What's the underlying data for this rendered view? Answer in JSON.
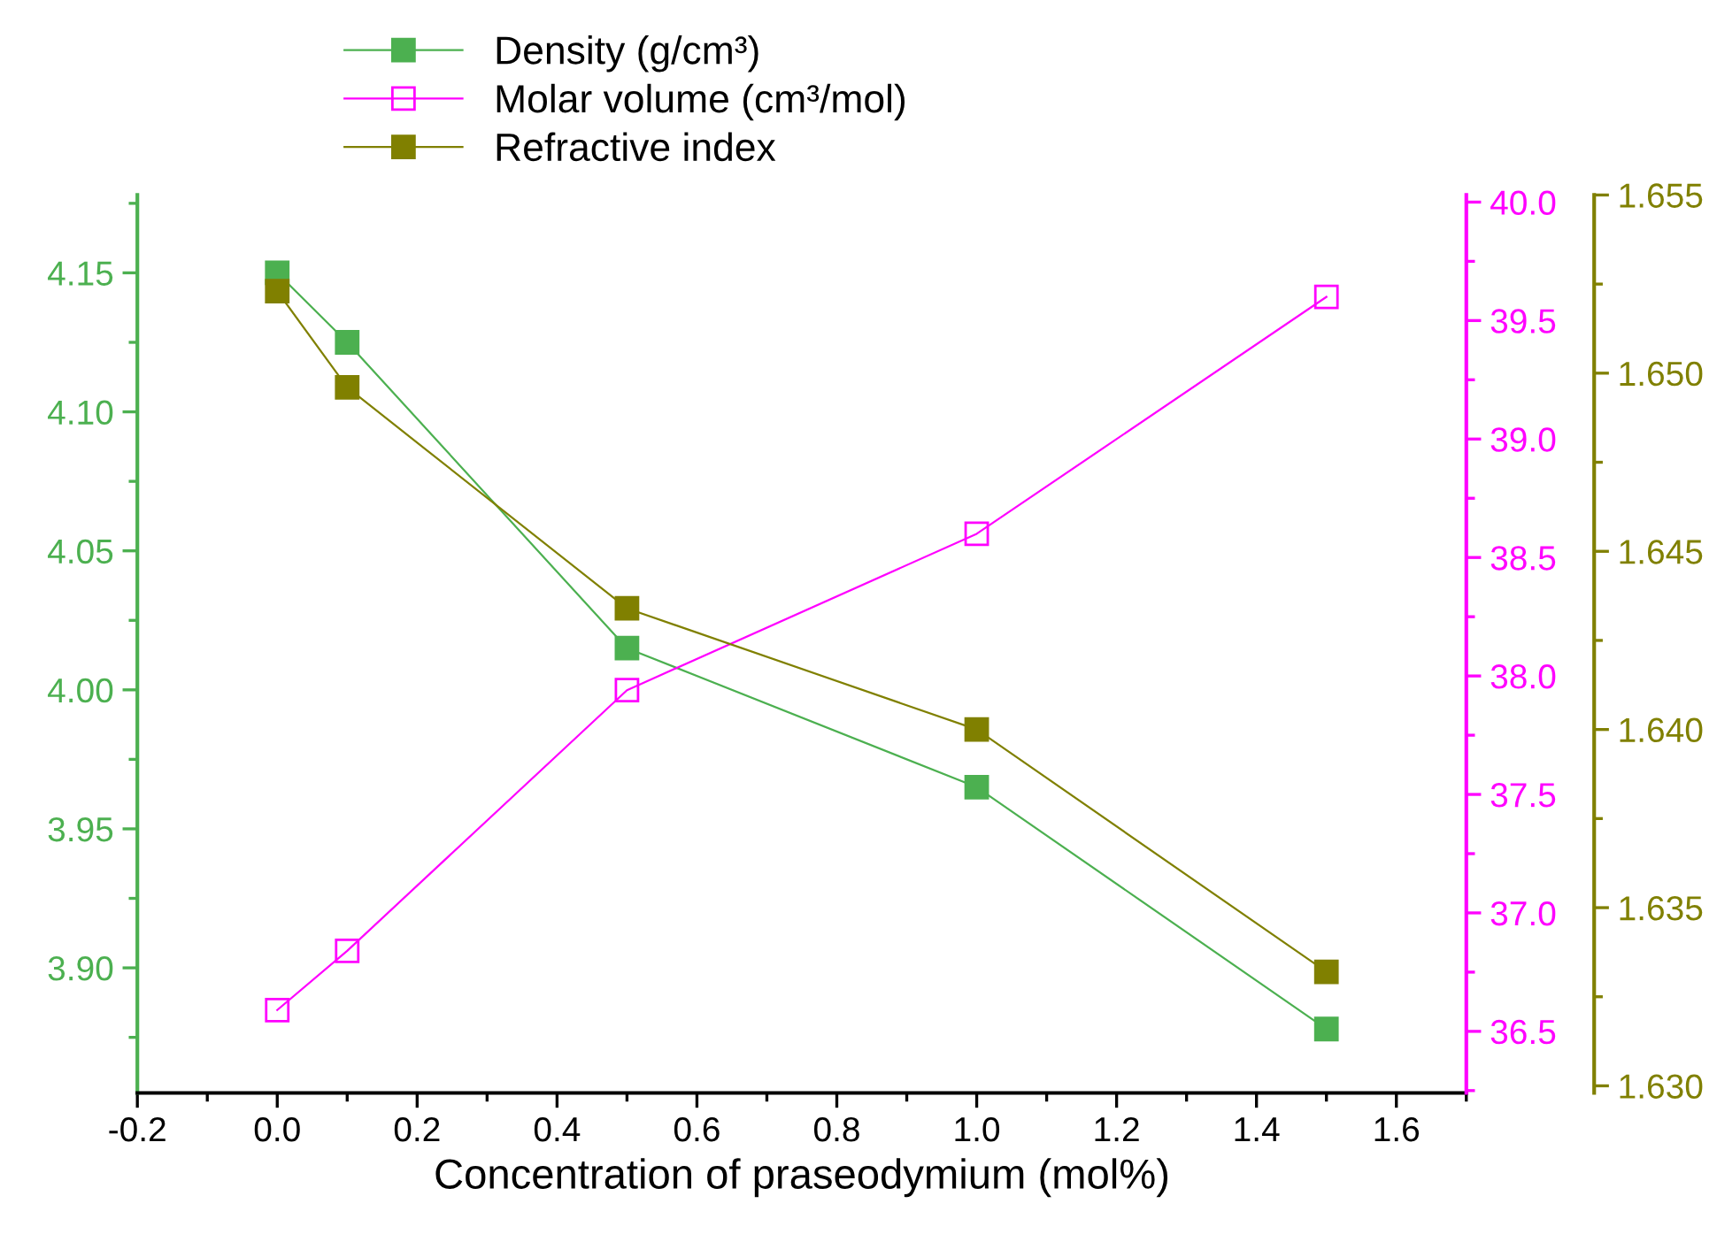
{
  "chart_data": {
    "type": "line",
    "xlabel": "Concentration of praseodymium (mol%)",
    "x": [
      0,
      0.1,
      0.5,
      1.0,
      1.5
    ],
    "series": [
      {
        "name": "Density (g/cm³)",
        "color": "#4cb050",
        "values": [
          4.15,
          4.125,
          4.015,
          3.965,
          3.878
        ]
      },
      {
        "name": "Molar volume (cm³/mol)",
        "color": "#ff00ff",
        "axis": "y2",
        "values": [
          36.59,
          36.84,
          37.94,
          38.6,
          39.6
        ]
      },
      {
        "name": "Refractive index",
        "color": "#808000",
        "axis": "y3",
        "values": [
          1.6523,
          1.6496,
          1.6434,
          1.64,
          1.6332
        ]
      }
    ],
    "xlim": [
      -0.2,
      1.7
    ],
    "xticks": [
      {
        "value": -0.2,
        "label": "-0.2"
      },
      {
        "value": 0,
        "label": "0.0"
      },
      {
        "value": 0.2,
        "label": "0.2"
      },
      {
        "value": 0.4,
        "label": "0.4"
      },
      {
        "value": 0.6,
        "label": "0.6"
      },
      {
        "value": 0.8,
        "label": "0.8"
      },
      {
        "value": 1.0,
        "label": "1.0"
      },
      {
        "value": 1.2,
        "label": "1.2"
      },
      {
        "value": 1.4,
        "label": "1.4"
      },
      {
        "value": 1.6,
        "label": "1.6"
      }
    ],
    "ylim": [
      3.855,
      4.178
    ],
    "yticks": [
      {
        "value": 3.9,
        "label": "3.90"
      },
      {
        "value": 3.95,
        "label": "3.95"
      },
      {
        "value": 4.0,
        "label": "4.00"
      },
      {
        "value": 4.05,
        "label": "4.05"
      },
      {
        "value": 4.1,
        "label": "4.10"
      },
      {
        "value": 4.15,
        "label": "4.15"
      }
    ],
    "y2lim": [
      36.24,
      40.03
    ],
    "y2ticks": [
      {
        "value": 36.5,
        "label": "36.5"
      },
      {
        "value": 37.0,
        "label": "37.0"
      },
      {
        "value": 37.5,
        "label": "37.5"
      },
      {
        "value": 38.0,
        "label": "38.0"
      },
      {
        "value": 38.5,
        "label": "38.5"
      },
      {
        "value": 39.0,
        "label": "39.0"
      },
      {
        "value": 39.5,
        "label": "39.5"
      },
      {
        "value": 40.0,
        "label": "40.0"
      }
    ],
    "y3lim": [
      1.6298,
      1.655
    ],
    "y3ticks": [
      {
        "value": 1.63,
        "label": "1.630"
      },
      {
        "value": 1.635,
        "label": "1.635"
      },
      {
        "value": 1.64,
        "label": "1.640"
      },
      {
        "value": 1.645,
        "label": "1.645"
      },
      {
        "value": 1.65,
        "label": "1.650"
      },
      {
        "value": 1.655,
        "label": "1.655"
      }
    ],
    "marker": "square",
    "line_style": "solid",
    "grid": false,
    "legend": "top"
  }
}
